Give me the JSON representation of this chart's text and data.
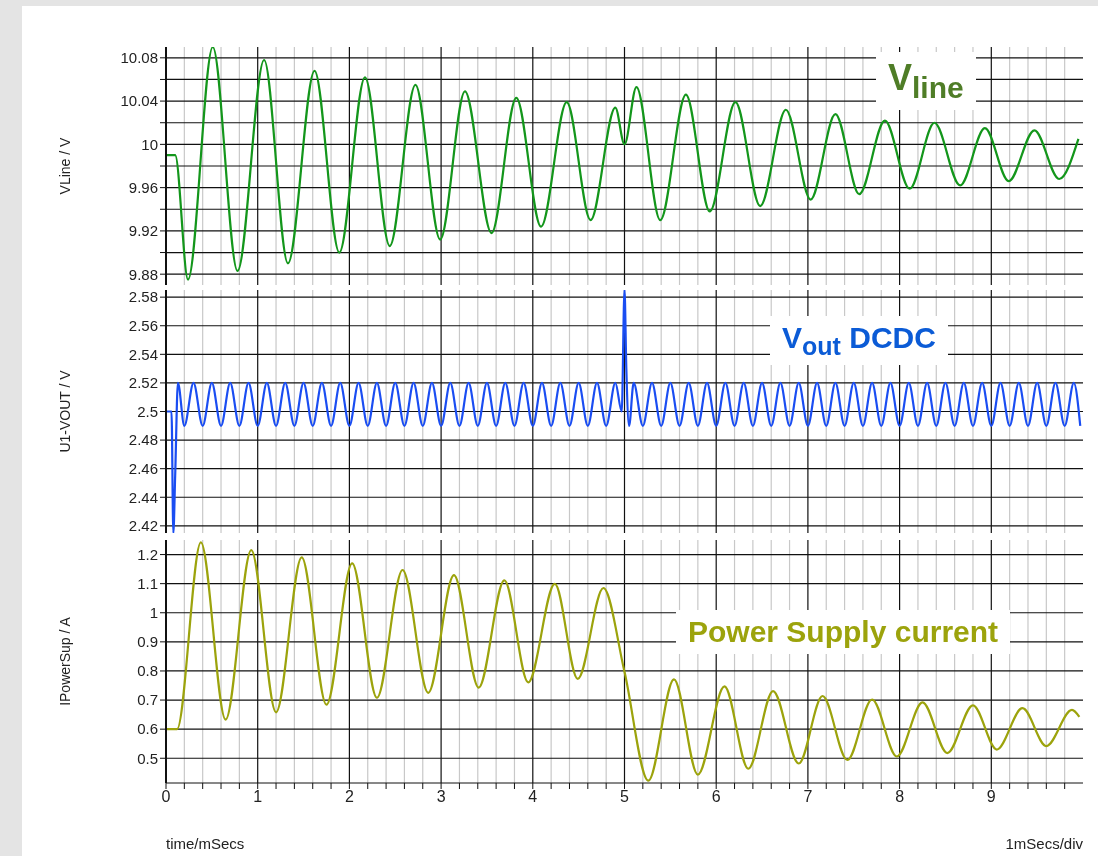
{
  "chart_data": [
    {
      "type": "line",
      "ylabel": "VLine / V",
      "xlim": [
        0,
        10
      ],
      "ylim": [
        9.87,
        10.09
      ],
      "tick_labels": "y",
      "grid": true,
      "xticks": [
        0,
        {
          "value": 0.2,
          "label": null
        },
        {
          "value": 0.4,
          "label": null
        },
        {
          "value": 0.6,
          "label": null
        },
        {
          "value": 0.8,
          "label": null
        },
        1,
        {
          "value": 1.2,
          "label": null
        },
        {
          "value": 1.4,
          "label": null
        },
        {
          "value": 1.6,
          "label": null
        },
        {
          "value": 1.8,
          "label": null
        },
        2,
        {
          "value": 2.2,
          "label": null
        },
        {
          "value": 2.4,
          "label": null
        },
        {
          "value": 2.6,
          "label": null
        },
        {
          "value": 2.8,
          "label": null
        },
        3,
        {
          "value": 3.2,
          "label": null
        },
        {
          "value": 3.4,
          "label": null
        },
        {
          "value": 3.6,
          "label": null
        },
        {
          "value": 3.8,
          "label": null
        },
        4,
        {
          "value": 4.2,
          "label": null
        },
        {
          "value": 4.4,
          "label": null
        },
        {
          "value": 4.6,
          "label": null
        },
        {
          "value": 4.8,
          "label": null
        },
        5,
        {
          "value": 5.2,
          "label": null
        },
        {
          "value": 5.4,
          "label": null
        },
        {
          "value": 5.6,
          "label": null
        },
        {
          "value": 5.8,
          "label": null
        },
        6,
        {
          "value": 6.2,
          "label": null
        },
        {
          "value": 6.4,
          "label": null
        },
        {
          "value": 6.6,
          "label": null
        },
        {
          "value": 6.8,
          "label": null
        },
        7,
        {
          "value": 7.2,
          "label": null
        },
        {
          "value": 7.4,
          "label": null
        },
        {
          "value": 7.6,
          "label": null
        },
        {
          "value": 7.8,
          "label": null
        },
        8,
        {
          "value": 8.2,
          "label": null
        },
        {
          "value": 8.4,
          "label": null
        },
        {
          "value": 8.6,
          "label": null
        },
        {
          "value": 8.8,
          "label": null
        },
        9,
        {
          "value": 9.2,
          "label": null
        },
        {
          "value": 9.4,
          "label": null
        },
        {
          "value": 9.6,
          "label": null
        },
        {
          "value": 9.8,
          "label": null
        }
      ],
      "yticks": [
        9.88,
        {
          "value": 9.9,
          "label": null
        },
        9.92,
        {
          "value": 9.94,
          "label": null
        },
        9.96,
        {
          "value": 9.98,
          "label": null
        },
        10,
        {
          "value": 10.02,
          "label": null
        },
        10.04,
        {
          "value": 10.06,
          "label": null
        },
        10.08
      ],
      "series": [
        {
          "name": "V$_{line}$",
          "color": "#13961b",
          "x": [
            0,
            0.1,
            0.24,
            0.51,
            0.78,
            1.07,
            1.33,
            1.62,
            1.89,
            2.17,
            2.44,
            2.72,
            2.99,
            3.26,
            3.55,
            3.82,
            4.09,
            4.37,
            4.63,
            4.9,
            5,
            5.13,
            5.39,
            5.67,
            5.93,
            6.21,
            6.48,
            6.76,
            7.03,
            7.3,
            7.56,
            7.84,
            8.11,
            8.38,
            8.66,
            8.93,
            9.19,
            9.47,
            9.74,
            9.95
          ],
          "values": [
            9.99,
            9.99,
            9.875,
            10.09,
            9.883,
            10.078,
            9.89,
            10.068,
            9.9,
            10.062,
            9.906,
            10.055,
            9.912,
            10.049,
            9.918,
            10.043,
            9.924,
            10.039,
            9.93,
            10.034,
            10,
            10.053,
            9.93,
            10.046,
            9.938,
            10.039,
            9.943,
            10.032,
            9.949,
            10.028,
            9.954,
            10.022,
            9.959,
            10.02,
            9.962,
            10.015,
            9.966,
            10.013,
            9.968,
            10.005
          ]
        }
      ]
    },
    {
      "type": "line",
      "ylabel": "U1-VOUT / V",
      "xlim": [
        0,
        10
      ],
      "ylim": [
        2.415,
        2.585
      ],
      "tick_labels": "y",
      "grid": true,
      "xticks": [
        0,
        {
          "value": 0.2,
          "label": null
        },
        {
          "value": 0.4,
          "label": null
        },
        {
          "value": 0.6,
          "label": null
        },
        {
          "value": 0.8,
          "label": null
        },
        1,
        {
          "value": 1.2,
          "label": null
        },
        {
          "value": 1.4,
          "label": null
        },
        {
          "value": 1.6,
          "label": null
        },
        {
          "value": 1.8,
          "label": null
        },
        2,
        {
          "value": 2.2,
          "label": null
        },
        {
          "value": 2.4,
          "label": null
        },
        {
          "value": 2.6,
          "label": null
        },
        {
          "value": 2.8,
          "label": null
        },
        3,
        {
          "value": 3.2,
          "label": null
        },
        {
          "value": 3.4,
          "label": null
        },
        {
          "value": 3.6,
          "label": null
        },
        {
          "value": 3.8,
          "label": null
        },
        4,
        {
          "value": 4.2,
          "label": null
        },
        {
          "value": 4.4,
          "label": null
        },
        {
          "value": 4.6,
          "label": null
        },
        {
          "value": 4.8,
          "label": null
        },
        5,
        {
          "value": 5.2,
          "label": null
        },
        {
          "value": 5.4,
          "label": null
        },
        {
          "value": 5.6,
          "label": null
        },
        {
          "value": 5.8,
          "label": null
        },
        6,
        {
          "value": 6.2,
          "label": null
        },
        {
          "value": 6.4,
          "label": null
        },
        {
          "value": 6.6,
          "label": null
        },
        {
          "value": 6.8,
          "label": null
        },
        7,
        {
          "value": 7.2,
          "label": null
        },
        {
          "value": 7.4,
          "label": null
        },
        {
          "value": 7.6,
          "label": null
        },
        {
          "value": 7.8,
          "label": null
        },
        8,
        {
          "value": 8.2,
          "label": null
        },
        {
          "value": 8.4,
          "label": null
        },
        {
          "value": 8.6,
          "label": null
        },
        {
          "value": 8.8,
          "label": null
        },
        9,
        {
          "value": 9.2,
          "label": null
        },
        {
          "value": 9.4,
          "label": null
        },
        {
          "value": 9.6,
          "label": null
        },
        {
          "value": 9.8,
          "label": null
        }
      ],
      "yticks": [
        2.42,
        2.44,
        2.46,
        2.48,
        2.5,
        2.52,
        2.54,
        2.56,
        2.58
      ],
      "series": [
        {
          "name": "V$_{out}$ DCDC",
          "color": "#1a4df2",
          "x": [
            0,
            0.06,
            0.08,
            0.1,
            0.13,
            0.2,
            0.3,
            0.4,
            0.5,
            0.6,
            0.7,
            0.8,
            0.9,
            1,
            1.1,
            1.2,
            1.3,
            1.4,
            1.5,
            1.6,
            1.7,
            1.8,
            1.9,
            2,
            2.1,
            2.2,
            2.3,
            2.4,
            2.5,
            2.6,
            2.7,
            2.8,
            2.9,
            3,
            3.1,
            3.2,
            3.3,
            3.4,
            3.5,
            3.6,
            3.7,
            3.8,
            3.9,
            4,
            4.1,
            4.2,
            4.3,
            4.4,
            4.5,
            4.6,
            4.7,
            4.8,
            4.9,
            4.97,
            5,
            5.02,
            5.05,
            5.1,
            5.2,
            5.3,
            5.4,
            5.5,
            5.6,
            5.7,
            5.8,
            5.9,
            6,
            6.1,
            6.2,
            6.3,
            6.4,
            6.5,
            6.6,
            6.7,
            6.8,
            6.9,
            7,
            7.1,
            7.2,
            7.3,
            7.4,
            7.5,
            7.6,
            7.7,
            7.8,
            7.9,
            8,
            8.1,
            8.2,
            8.3,
            8.4,
            8.5,
            8.6,
            8.7,
            8.8,
            8.9,
            9,
            9.1,
            9.2,
            9.3,
            9.4,
            9.5,
            9.6,
            9.7,
            9.8,
            9.9,
            9.97
          ],
          "values": [
            2.5,
            2.5,
            2.415,
            2.455,
            2.52,
            2.49,
            2.52,
            2.49,
            2.52,
            2.49,
            2.52,
            2.49,
            2.52,
            2.49,
            2.52,
            2.49,
            2.52,
            2.49,
            2.52,
            2.49,
            2.52,
            2.49,
            2.52,
            2.49,
            2.52,
            2.49,
            2.52,
            2.49,
            2.52,
            2.49,
            2.52,
            2.49,
            2.52,
            2.49,
            2.52,
            2.49,
            2.52,
            2.49,
            2.52,
            2.49,
            2.52,
            2.49,
            2.52,
            2.49,
            2.52,
            2.49,
            2.52,
            2.49,
            2.52,
            2.49,
            2.52,
            2.49,
            2.52,
            2.5,
            2.585,
            2.53,
            2.49,
            2.52,
            2.49,
            2.52,
            2.49,
            2.52,
            2.49,
            2.52,
            2.49,
            2.52,
            2.49,
            2.52,
            2.49,
            2.52,
            2.49,
            2.52,
            2.49,
            2.52,
            2.49,
            2.52,
            2.49,
            2.52,
            2.49,
            2.52,
            2.49,
            2.52,
            2.49,
            2.52,
            2.49,
            2.52,
            2.49,
            2.52,
            2.49,
            2.52,
            2.49,
            2.52,
            2.49,
            2.52,
            2.49,
            2.52,
            2.49,
            2.52,
            2.49,
            2.52,
            2.49,
            2.52,
            2.49,
            2.52,
            2.49,
            2.52,
            2.49
          ]
        }
      ]
    },
    {
      "type": "line",
      "ylabel": "IPowerSup / A",
      "xlabel": "time/mSecs",
      "annotations": [
        "1mSecs/div"
      ],
      "xlim": [
        0,
        10
      ],
      "ylim": [
        0.415,
        1.25
      ],
      "grid": true,
      "xticks": [
        0,
        {
          "value": 0.2,
          "label": null
        },
        {
          "value": 0.4,
          "label": null
        },
        {
          "value": 0.6,
          "label": null
        },
        {
          "value": 0.8,
          "label": null
        },
        1,
        {
          "value": 1.2,
          "label": null
        },
        {
          "value": 1.4,
          "label": null
        },
        {
          "value": 1.6,
          "label": null
        },
        {
          "value": 1.8,
          "label": null
        },
        2,
        {
          "value": 2.2,
          "label": null
        },
        {
          "value": 2.4,
          "label": null
        },
        {
          "value": 2.6,
          "label": null
        },
        {
          "value": 2.8,
          "label": null
        },
        3,
        {
          "value": 3.2,
          "label": null
        },
        {
          "value": 3.4,
          "label": null
        },
        {
          "value": 3.6,
          "label": null
        },
        {
          "value": 3.8,
          "label": null
        },
        4,
        {
          "value": 4.2,
          "label": null
        },
        {
          "value": 4.4,
          "label": null
        },
        {
          "value": 4.6,
          "label": null
        },
        {
          "value": 4.8,
          "label": null
        },
        5,
        {
          "value": 5.2,
          "label": null
        },
        {
          "value": 5.4,
          "label": null
        },
        {
          "value": 5.6,
          "label": null
        },
        {
          "value": 5.8,
          "label": null
        },
        6,
        {
          "value": 6.2,
          "label": null
        },
        {
          "value": 6.4,
          "label": null
        },
        {
          "value": 6.6,
          "label": null
        },
        {
          "value": 6.8,
          "label": null
        },
        7,
        {
          "value": 7.2,
          "label": null
        },
        {
          "value": 7.4,
          "label": null
        },
        {
          "value": 7.6,
          "label": null
        },
        {
          "value": 7.8,
          "label": null
        },
        8,
        {
          "value": 8.2,
          "label": null
        },
        {
          "value": 8.4,
          "label": null
        },
        {
          "value": 8.6,
          "label": null
        },
        {
          "value": 8.8,
          "label": null
        },
        9,
        {
          "value": 9.2,
          "label": null
        },
        {
          "value": 9.4,
          "label": null
        },
        {
          "value": 9.6,
          "label": null
        },
        {
          "value": 9.8,
          "label": null
        }
      ],
      "yticks": [
        0.5,
        0.6,
        0.7,
        0.8,
        0.9,
        1,
        1.1,
        1.2
      ],
      "series": [
        {
          "name": "Power Supply current",
          "color": "#9ca30c",
          "x": [
            0,
            0.12,
            0.38,
            0.65,
            0.93,
            1.2,
            1.48,
            1.75,
            2.03,
            2.3,
            2.58,
            2.86,
            3.14,
            3.41,
            3.69,
            3.95,
            4.24,
            4.49,
            4.77,
            5,
            5.26,
            5.54,
            5.8,
            6.09,
            6.35,
            6.62,
            6.9,
            7.16,
            7.43,
            7.7,
            7.97,
            8.25,
            8.52,
            8.8,
            9.06,
            9.34,
            9.6,
            9.88,
            9.96
          ],
          "values": [
            0.6,
            0.6,
            1.242,
            0.633,
            1.215,
            0.658,
            1.19,
            0.684,
            1.17,
            0.708,
            1.147,
            0.725,
            1.129,
            0.743,
            1.111,
            0.761,
            1.099,
            0.773,
            1.085,
            0.797,
            0.423,
            0.771,
            0.444,
            0.747,
            0.464,
            0.731,
            0.482,
            0.714,
            0.494,
            0.702,
            0.506,
            0.692,
            0.518,
            0.682,
            0.53,
            0.672,
            0.542,
            0.666,
            0.642
          ]
        }
      ]
    }
  ]
}
